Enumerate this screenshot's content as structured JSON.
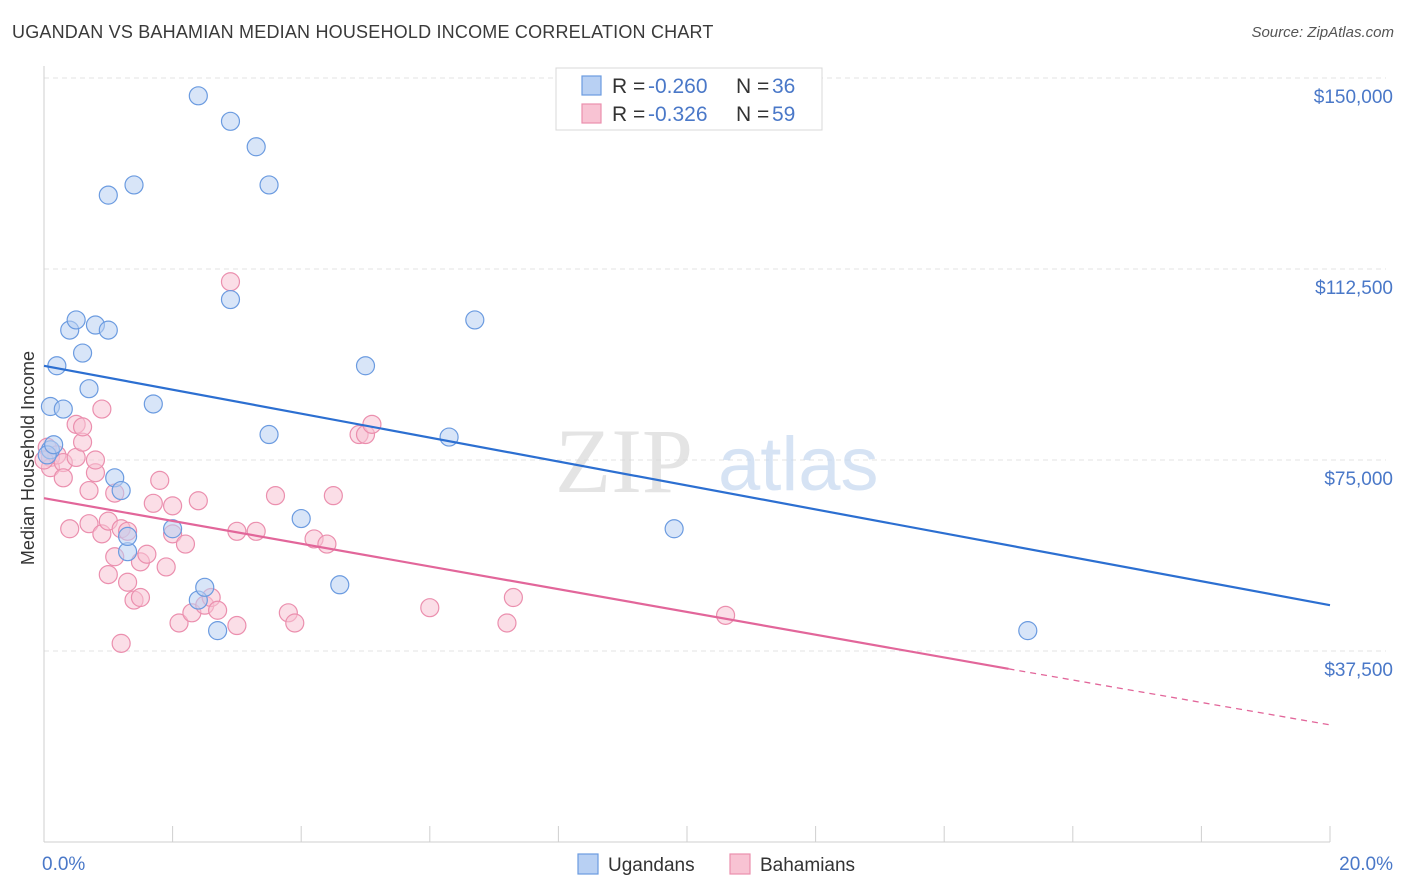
{
  "title": "UGANDAN VS BAHAMIAN MEDIAN HOUSEHOLD INCOME CORRELATION CHART",
  "source": "Source: ZipAtlas.com",
  "watermark": {
    "zip": "ZIP",
    "atlas": "atlas"
  },
  "chart_data": {
    "type": "scatter",
    "title": "UGANDAN VS BAHAMIAN MEDIAN HOUSEHOLD INCOME CORRELATION CHART",
    "xlabel": "",
    "ylabel": "Median Household Income",
    "xlim": [
      0,
      20
    ],
    "ylim": [
      15000,
      155000
    ],
    "x_tick_labels": [
      "0.0%",
      "20.0%"
    ],
    "y_ticks": [
      37500,
      75000,
      112500,
      150000
    ],
    "y_tick_labels": [
      "$37,500",
      "$75,000",
      "$112,500",
      "$150,000"
    ],
    "grid": true,
    "legend_placement": "top-center",
    "series": [
      {
        "name": "Ugandans",
        "color": "#6b9be0",
        "fill": "#b8d0f3",
        "line_color": "#2c6fd1",
        "r": "-0.260",
        "n": "36",
        "trend": {
          "x0": 0,
          "y0": 93500,
          "x1": 20,
          "y1": 46500
        },
        "points": [
          [
            0.1,
            77000
          ],
          [
            0.1,
            85500
          ],
          [
            0.2,
            93500
          ],
          [
            0.3,
            85000
          ],
          [
            0.4,
            100500
          ],
          [
            0.5,
            102500
          ],
          [
            0.6,
            96000
          ],
          [
            0.7,
            89000
          ],
          [
            0.8,
            101500
          ],
          [
            1.0,
            100500
          ],
          [
            1.1,
            71500
          ],
          [
            1.2,
            69000
          ],
          [
            1.3,
            57000
          ],
          [
            1.3,
            60000
          ],
          [
            1.0,
            127000
          ],
          [
            1.4,
            129000
          ],
          [
            1.7,
            86000
          ],
          [
            2.0,
            61500
          ],
          [
            2.4,
            146500
          ],
          [
            2.4,
            47500
          ],
          [
            2.5,
            50000
          ],
          [
            2.7,
            41500
          ],
          [
            2.9,
            106500
          ],
          [
            2.9,
            141500
          ],
          [
            3.3,
            136500
          ],
          [
            3.5,
            80000
          ],
          [
            3.5,
            129000
          ],
          [
            4.0,
            63500
          ],
          [
            4.6,
            50500
          ],
          [
            5.0,
            93500
          ],
          [
            6.3,
            79500
          ],
          [
            6.7,
            102500
          ],
          [
            9.8,
            61500
          ],
          [
            15.3,
            41500
          ],
          [
            0.05,
            76000
          ],
          [
            0.15,
            78000
          ]
        ]
      },
      {
        "name": "Bahamians",
        "color": "#eb8fae",
        "fill": "#f8c3d3",
        "line_color": "#e2669a",
        "r": "-0.326",
        "n": "59",
        "trend": {
          "x0": 0,
          "y0": 67500,
          "x1": 15,
          "y1": 34000
        },
        "trend_dashed": {
          "x0": 15,
          "y0": 34000,
          "x1": 20,
          "y1": 23000
        },
        "points": [
          [
            0.05,
            77500
          ],
          [
            0.1,
            75500
          ],
          [
            0.1,
            73500
          ],
          [
            0.2,
            76000
          ],
          [
            0.3,
            74500
          ],
          [
            0.3,
            71500
          ],
          [
            0.4,
            61500
          ],
          [
            0.5,
            82000
          ],
          [
            0.5,
            75500
          ],
          [
            0.6,
            78500
          ],
          [
            0.6,
            81500
          ],
          [
            0.7,
            69000
          ],
          [
            0.7,
            62500
          ],
          [
            0.8,
            72500
          ],
          [
            0.8,
            75000
          ],
          [
            0.9,
            85000
          ],
          [
            0.9,
            60500
          ],
          [
            1.0,
            52500
          ],
          [
            1.0,
            63000
          ],
          [
            1.1,
            68500
          ],
          [
            1.1,
            56000
          ],
          [
            1.2,
            61500
          ],
          [
            1.2,
            39000
          ],
          [
            1.3,
            61000
          ],
          [
            1.3,
            51000
          ],
          [
            1.4,
            47500
          ],
          [
            1.5,
            48000
          ],
          [
            1.5,
            55000
          ],
          [
            1.6,
            56500
          ],
          [
            1.7,
            66500
          ],
          [
            1.8,
            71000
          ],
          [
            1.9,
            54000
          ],
          [
            2.0,
            66000
          ],
          [
            2.0,
            60500
          ],
          [
            2.1,
            43000
          ],
          [
            2.2,
            58500
          ],
          [
            2.3,
            45000
          ],
          [
            2.4,
            67000
          ],
          [
            2.5,
            46500
          ],
          [
            2.6,
            48000
          ],
          [
            2.7,
            45500
          ],
          [
            2.9,
            110000
          ],
          [
            3.0,
            61000
          ],
          [
            3.0,
            42500
          ],
          [
            3.3,
            61000
          ],
          [
            3.6,
            68000
          ],
          [
            3.8,
            45000
          ],
          [
            3.9,
            43000
          ],
          [
            4.2,
            59500
          ],
          [
            4.4,
            58500
          ],
          [
            4.5,
            68000
          ],
          [
            4.9,
            80000
          ],
          [
            5.0,
            80000
          ],
          [
            5.1,
            82000
          ],
          [
            6.0,
            46000
          ],
          [
            7.2,
            43000
          ],
          [
            7.3,
            48000
          ],
          [
            10.6,
            44500
          ],
          [
            0.0,
            75000
          ]
        ]
      }
    ]
  }
}
